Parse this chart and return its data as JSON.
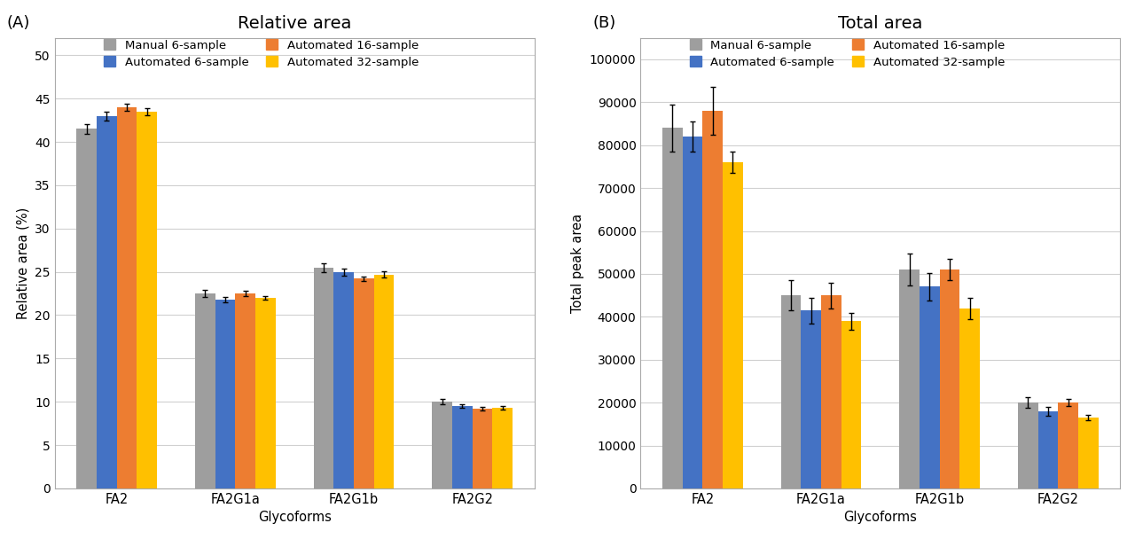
{
  "glycoforms": [
    "FA2",
    "FA2G1a",
    "FA2G1b",
    "FA2G2"
  ],
  "series_labels": [
    "Manual 6-sample",
    "Automated 6-sample",
    "Automated 16-sample",
    "Automated 32-sample"
  ],
  "colors": [
    "#9e9e9e",
    "#4472c4",
    "#ed7d31",
    "#ffc000"
  ],
  "panel_A": {
    "title": "Relative area",
    "ylabel": "Relative area (%)",
    "xlabel": "Glycoforms",
    "ylim": [
      0,
      52
    ],
    "yticks": [
      0,
      5,
      10,
      15,
      20,
      25,
      30,
      35,
      40,
      45,
      50
    ],
    "values": [
      [
        41.5,
        22.5,
        25.5,
        10.0
      ],
      [
        43.0,
        21.8,
        25.0,
        9.5
      ],
      [
        44.0,
        22.5,
        24.2,
        9.2
      ],
      [
        43.5,
        22.0,
        24.7,
        9.3
      ]
    ],
    "errors": [
      [
        0.6,
        0.4,
        0.5,
        0.3
      ],
      [
        0.5,
        0.3,
        0.4,
        0.2
      ],
      [
        0.4,
        0.3,
        0.3,
        0.2
      ],
      [
        0.4,
        0.2,
        0.4,
        0.2
      ]
    ]
  },
  "panel_B": {
    "title": "Total area",
    "ylabel": "Total peak area",
    "xlabel": "Glycoforms",
    "ylim": [
      0,
      105000
    ],
    "yticks": [
      0,
      10000,
      20000,
      30000,
      40000,
      50000,
      60000,
      70000,
      80000,
      90000,
      100000
    ],
    "values": [
      [
        84000,
        45000,
        51000,
        20000
      ],
      [
        82000,
        41500,
        47000,
        18000
      ],
      [
        88000,
        45000,
        51000,
        20000
      ],
      [
        76000,
        39000,
        42000,
        16500
      ]
    ],
    "errors": [
      [
        5500,
        3500,
        3800,
        1200
      ],
      [
        3500,
        3000,
        3200,
        1000
      ],
      [
        5500,
        3000,
        2500,
        800
      ],
      [
        2500,
        2000,
        2500,
        700
      ]
    ]
  },
  "bar_width": 0.17,
  "figure_bg": "#ffffff",
  "panel_bg": "#ffffff",
  "grid_color": "#d0d0d0",
  "spine_color": "#aaaaaa"
}
